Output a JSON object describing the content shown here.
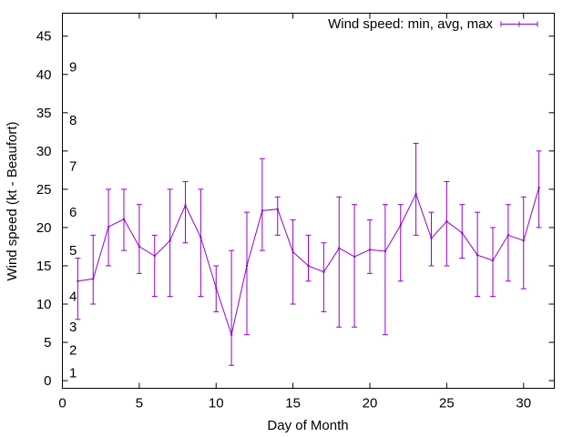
{
  "chart_data": {
    "type": "line",
    "xlabel": "Day of Month",
    "ylabel": "Wind speed (kt - Beaufort)",
    "xlim": [
      0,
      32
    ],
    "ylim": [
      -1,
      48
    ],
    "x_ticks": [
      0,
      5,
      10,
      15,
      20,
      25,
      30
    ],
    "y_ticks": [
      0,
      5,
      10,
      15,
      20,
      25,
      30,
      35,
      40,
      45
    ],
    "grid": false,
    "legend_position": "top-right",
    "beaufort_labels": [
      {
        "label": "1",
        "y": 1
      },
      {
        "label": "2",
        "y": 4
      },
      {
        "label": "3",
        "y": 7
      },
      {
        "label": "4",
        "y": 11
      },
      {
        "label": "5",
        "y": 17
      },
      {
        "label": "6",
        "y": 22
      },
      {
        "label": "7",
        "y": 28
      },
      {
        "label": "8",
        "y": 34
      },
      {
        "label": "9",
        "y": 41
      }
    ],
    "series": [
      {
        "name": "Wind speed: min, avg, max",
        "color": "#9400d3",
        "x": [
          1,
          2,
          3,
          4,
          5,
          6,
          7,
          8,
          9,
          10,
          11,
          12,
          13,
          14,
          15,
          16,
          17,
          18,
          19,
          20,
          21,
          22,
          23,
          24,
          25,
          26,
          27,
          28,
          29,
          30,
          31
        ],
        "avg": [
          13,
          13.3,
          20.1,
          21.1,
          17.5,
          16.3,
          18.3,
          22.9,
          18.7,
          12.1,
          6,
          15,
          22.2,
          22.4,
          16.8,
          15,
          14.2,
          17.3,
          16.2,
          17.1,
          16.9,
          20.3,
          24.4,
          18.6,
          20.8,
          19.3,
          16.4,
          15.7,
          19,
          18.3,
          25.2
        ],
        "min": [
          8,
          10,
          15,
          17,
          14,
          11,
          11,
          18,
          11,
          9,
          2,
          6,
          17,
          19,
          10,
          13,
          9,
          7,
          7,
          14,
          6,
          13,
          19,
          15,
          15,
          16,
          11,
          11,
          13,
          12,
          20
        ],
        "max": [
          16,
          19,
          25,
          25,
          23,
          19,
          25,
          26,
          25,
          15,
          17,
          22,
          29,
          24,
          21,
          19,
          18,
          24,
          23,
          21,
          23,
          23,
          31,
          22,
          26,
          23,
          22,
          20,
          23,
          24,
          30
        ]
      }
    ]
  }
}
